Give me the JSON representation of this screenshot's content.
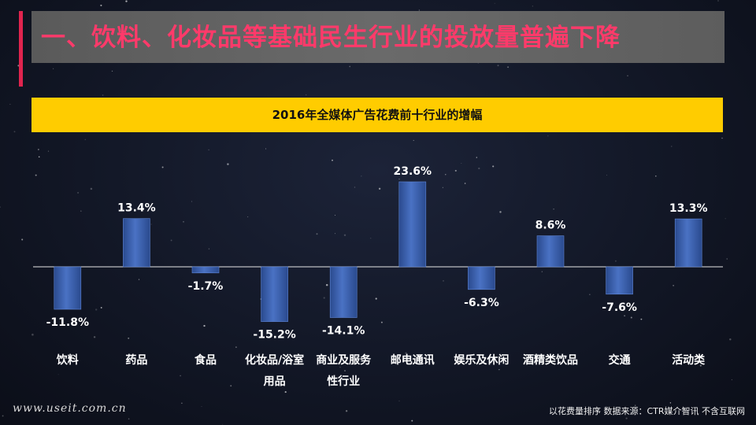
{
  "header": {
    "title": "一、饮料、化妆品等基础民生行业的投放量普遍下降"
  },
  "footer": {
    "url": "www.useit.com.cn",
    "note": "以花费量排序    数据来源：CTR媒介智讯  不含互联网"
  },
  "colors": {
    "accent": "#e0244e",
    "title_text": "#ff3a6a",
    "subtitle_bg": "#ffcc00",
    "bar_fill": "#4a72c4",
    "bar_edge": "#2a4a8e",
    "axis": "#e6e6e6"
  },
  "chart_data": {
    "type": "bar",
    "title": "2016年全媒体广告花费前十行业的增幅",
    "categories": [
      "饮料",
      "药品",
      "食品",
      "化妆品/浴室用品",
      "商业及服务性行业",
      "邮电通讯",
      "娱乐及休闲",
      "酒精类饮品",
      "交通",
      "活动类"
    ],
    "category_lines": [
      [
        "饮料"
      ],
      [
        "药品"
      ],
      [
        "食品"
      ],
      [
        "化妆品/浴室",
        "用品"
      ],
      [
        "商业及服务",
        "性行业"
      ],
      [
        "邮电通讯"
      ],
      [
        "娱乐及休闲"
      ],
      [
        "酒精类饮品"
      ],
      [
        "交通"
      ],
      [
        "活动类"
      ]
    ],
    "values": [
      -11.8,
      13.4,
      -1.7,
      -15.2,
      -14.1,
      23.6,
      -6.3,
      8.6,
      -7.6,
      13.3
    ],
    "value_labels": [
      "-11.8%",
      "13.4%",
      "-1.7%",
      "-15.2%",
      "-14.1%",
      "23.6%",
      "-6.3%",
      "8.6%",
      "-7.6%",
      "13.3%"
    ],
    "unit": "%",
    "ylim": [
      -15.2,
      23.6
    ],
    "grid": false,
    "legend": "none"
  }
}
